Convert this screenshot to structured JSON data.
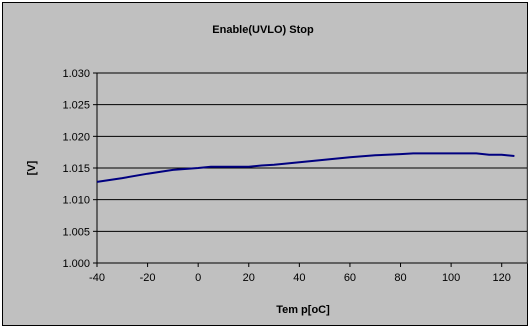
{
  "chart_data": {
    "type": "line",
    "title": "Enable(UVLO) Stop",
    "xlabel": "Tem p[oC]",
    "ylabel": "[V]",
    "xlim": [
      -40,
      130
    ],
    "ylim": [
      1.0,
      1.03
    ],
    "xticks": [
      -40,
      -20,
      0,
      20,
      40,
      60,
      80,
      100,
      120
    ],
    "xtick_labels": [
      "-40",
      "-20",
      "0",
      "20",
      "40",
      "60",
      "80",
      "100",
      "120"
    ],
    "yticks": [
      1.0,
      1.005,
      1.01,
      1.015,
      1.02,
      1.025,
      1.03
    ],
    "ytick_labels": [
      "1.000",
      "1.005",
      "1.010",
      "1.015",
      "1.020",
      "1.025",
      "1.030"
    ],
    "grid": "horizontal",
    "legend": "none",
    "series": [
      {
        "color": "#000080",
        "x": [
          -40,
          -30,
          -20,
          -10,
          0,
          5,
          10,
          20,
          25,
          30,
          40,
          50,
          60,
          70,
          80,
          85,
          90,
          100,
          110,
          115,
          120,
          125
        ],
        "y": [
          1.0128,
          1.0134,
          1.0141,
          1.0147,
          1.015,
          1.0152,
          1.0152,
          1.0152,
          1.0154,
          1.0155,
          1.0159,
          1.0163,
          1.0167,
          1.017,
          1.0172,
          1.0173,
          1.0173,
          1.0173,
          1.0173,
          1.0171,
          1.0171,
          1.0169
        ]
      }
    ]
  }
}
